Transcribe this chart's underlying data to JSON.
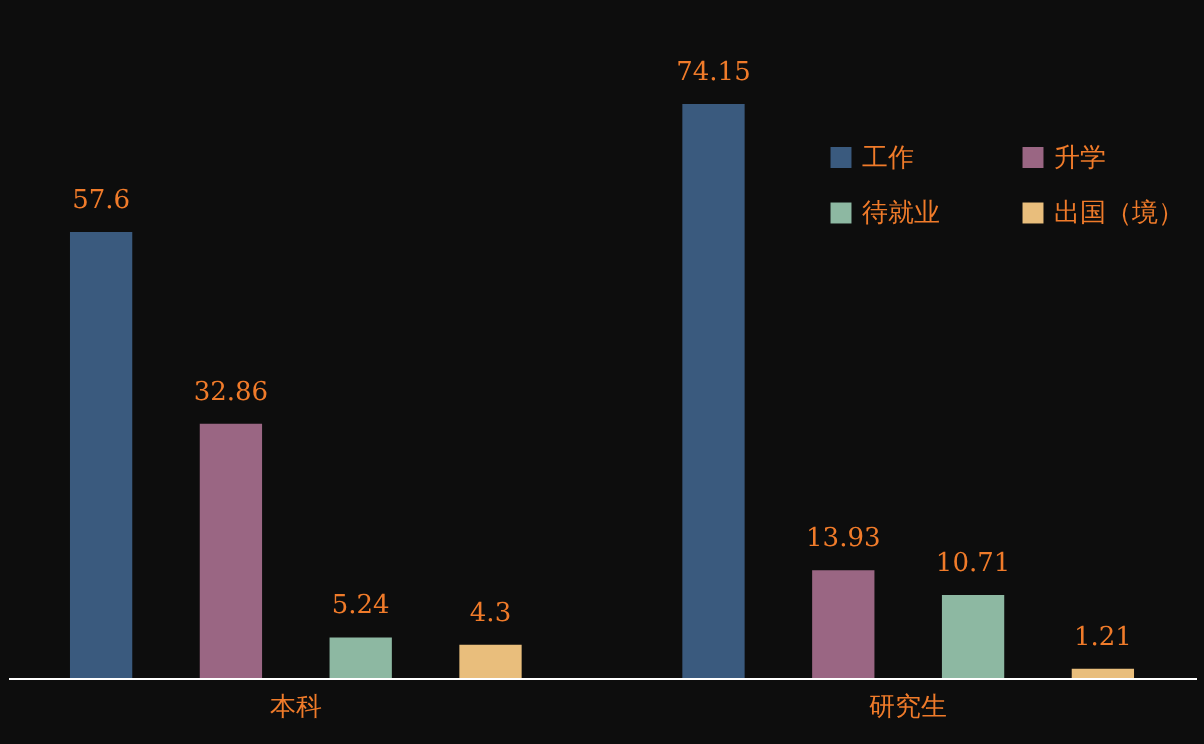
{
  "chart_data": {
    "type": "bar",
    "categories": [
      "本科",
      "研究生"
    ],
    "series": [
      {
        "name": "工作",
        "color": "#3a5a7e",
        "values": [
          57.6,
          74.15
        ]
      },
      {
        "name": "升学",
        "color": "#9a6683",
        "values": [
          32.86,
          13.93
        ]
      },
      {
        "name": "待就业",
        "color": "#8db8a2",
        "values": [
          5.24,
          10.71
        ]
      },
      {
        "name": "出国（境）",
        "color": "#e9be7c",
        "values": [
          4.3,
          1.21
        ]
      }
    ],
    "data_labels": true,
    "legend": "top right",
    "tick_labels": "x"
  }
}
